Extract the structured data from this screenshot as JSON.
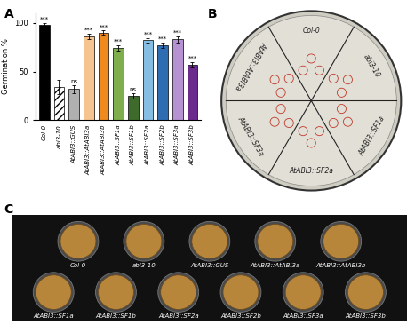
{
  "panel_labels": [
    "A",
    "B",
    "C"
  ],
  "chart_data": {
    "type": "bar",
    "y_label": "Germination %",
    "categories": [
      "Col-0",
      "abi3-10",
      "AtABI3::GUS",
      "AtABI3::AtABI3a",
      "AtABI3::AtABI3b",
      "AtABI3::SF1a",
      "AtABI3::SF1b",
      "AtABI3::SF2a",
      "AtABI3::SF2b",
      "AtABI3::SF3a",
      "AtABI3::SF3b"
    ],
    "values": [
      98,
      34,
      32,
      86,
      90,
      74,
      25,
      82,
      77,
      83,
      57
    ],
    "errors": [
      2,
      7,
      4,
      3,
      2,
      3,
      3,
      2,
      3,
      3,
      3
    ],
    "significance": [
      "***",
      null,
      "ns",
      "***",
      "***",
      "***",
      "ns",
      "***",
      "***",
      "***",
      "***"
    ],
    "colors": [
      "#000000",
      "#ffffff",
      "#b0b0b0",
      "#f6c58f",
      "#ef8a1e",
      "#7fae4c",
      "#3e6b2c",
      "#86bde3",
      "#2f6db3",
      "#b792d3",
      "#6b2b8c"
    ],
    "ylim": [
      0,
      110
    ],
    "yticks": [
      0,
      50,
      100
    ]
  },
  "panel_B": {
    "sectors": [
      "Col-0",
      "abi3-10",
      "AtABI3::SF1a",
      "AtABI3::SF2a",
      "AtABI3::SF3a",
      "AtABI3::AtABI3a"
    ]
  },
  "panel_C": {
    "rows": [
      [
        "Col-0",
        "abi3-10",
        "AtABI3::GUS",
        "AtABI3::AtABI3a",
        "AtABI3::AtABI3b"
      ],
      [
        "AtABI3::SF1a",
        "AtABI3::SF1b",
        "AtABI3::SF2a",
        "AtABI3::SF2b",
        "AtABI3::SF3a",
        "AtABI3::SF3b"
      ]
    ]
  }
}
